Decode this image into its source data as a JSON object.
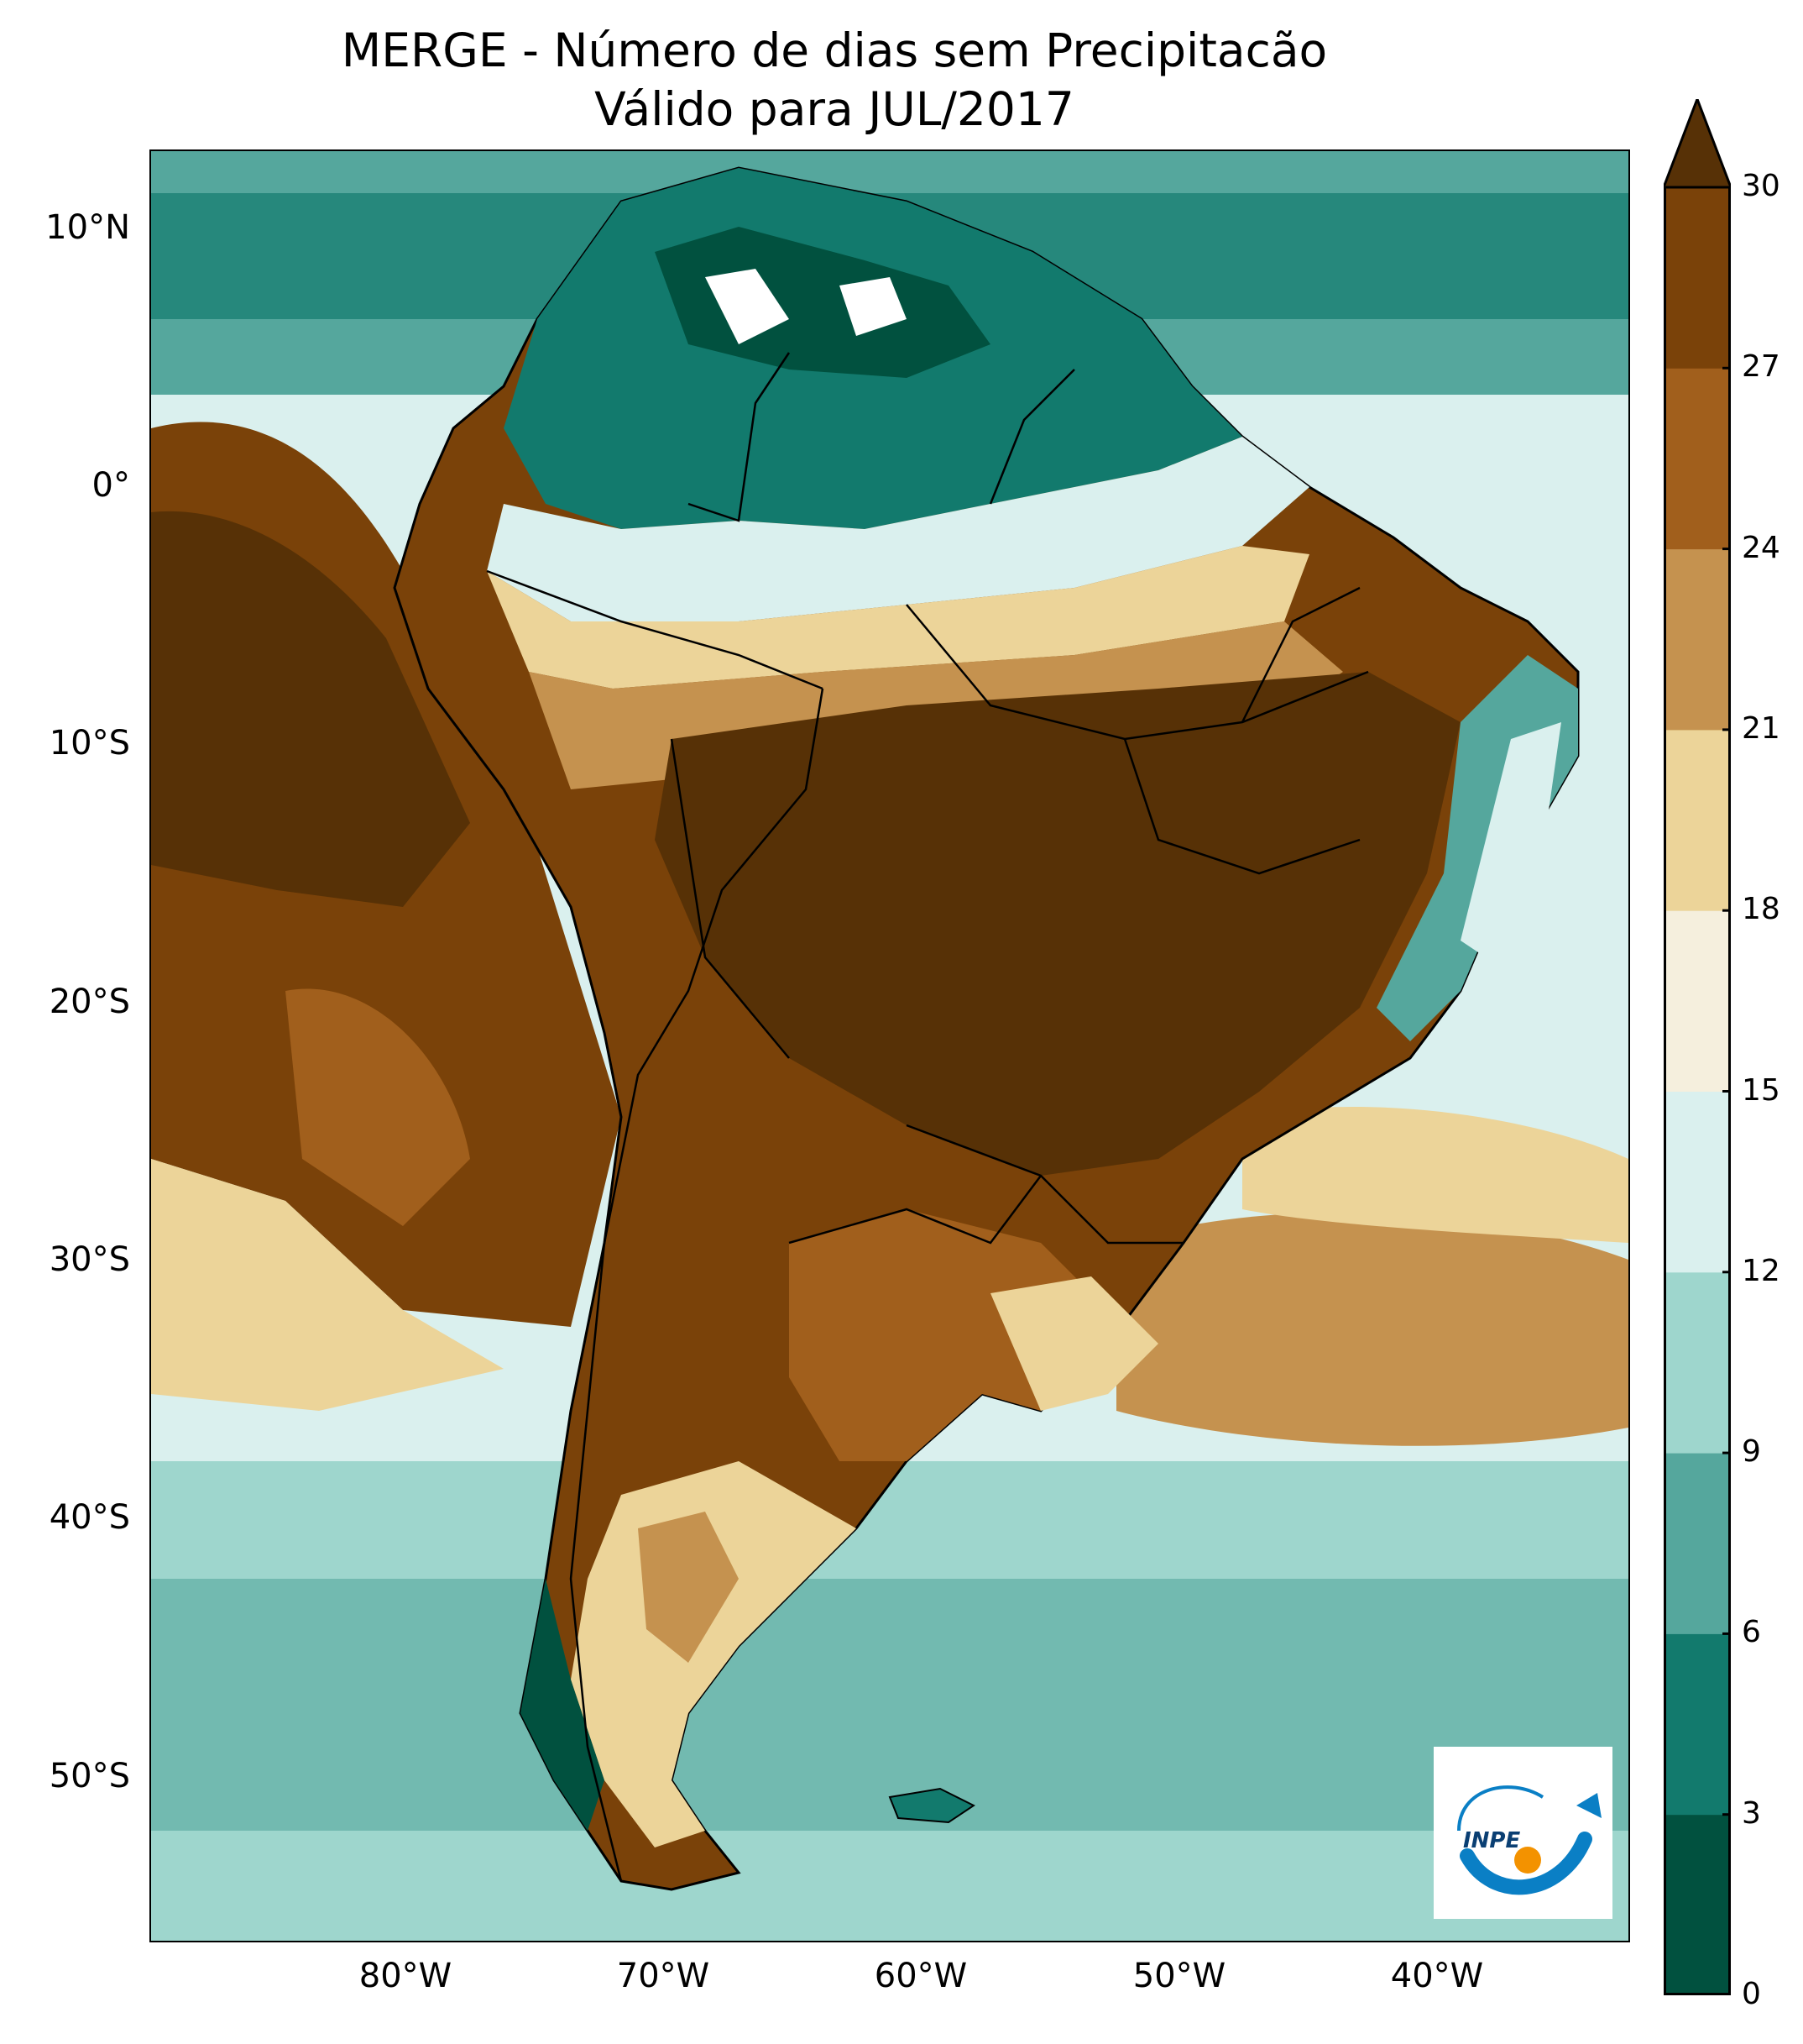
{
  "title": "MERGE - Número de dias sem Precipitacão",
  "subtitle": "Válido para JUL/2017",
  "lat_ticks": [
    "10°N",
    "0°",
    "10°S",
    "20°S",
    "30°S",
    "40°S",
    "50°S"
  ],
  "lon_ticks": [
    "80°W",
    "70°W",
    "60°W",
    "50°W",
    "40°W"
  ],
  "colorbar": {
    "ticks": [
      "0",
      "3",
      "6",
      "9",
      "12",
      "15",
      "18",
      "21",
      "24",
      "27",
      "30"
    ],
    "colors": [
      "#01513f",
      "#127a6d",
      "#55a79d",
      "#9ed6cd",
      "#daf0ee",
      "#f5efdd",
      "#ecd499",
      "#c5924f",
      "#a15f1c",
      "#7a4209",
      "#573106"
    ],
    "extend": "max"
  },
  "logo": {
    "text": "INPE",
    "colors": {
      "blue": "#0a7fc5",
      "orange": "#f39200"
    }
  }
}
